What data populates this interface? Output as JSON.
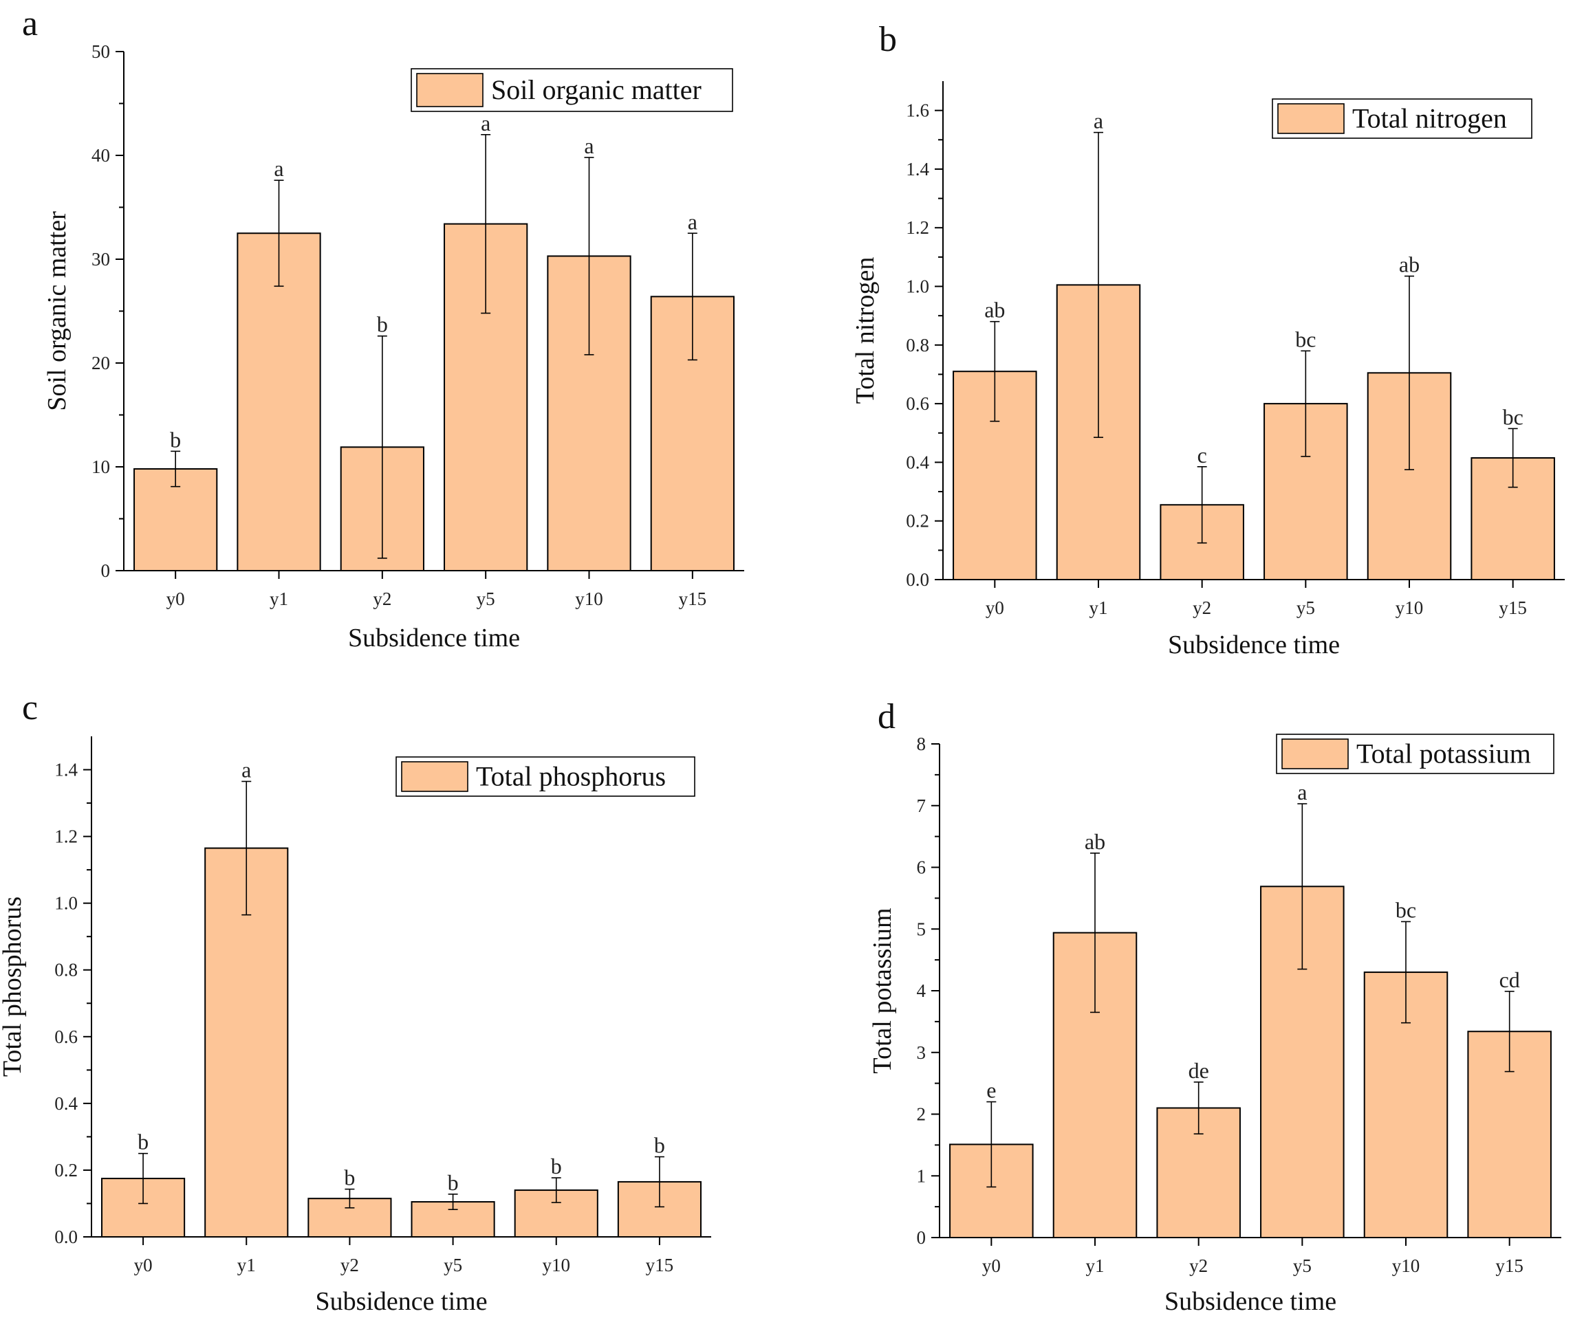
{
  "style": {
    "bar_fill": "#FDC597",
    "bar_stroke": "#000000",
    "axis_color": "#000000"
  },
  "chart_data": [
    {
      "type": "bar",
      "panel_letter": "a",
      "title": "",
      "categories": [
        "y0",
        "y1",
        "y2",
        "y5",
        "y10",
        "y15"
      ],
      "values": [
        9.8,
        32.5,
        11.9,
        33.4,
        30.3,
        26.4
      ],
      "errors": [
        1.7,
        5.1,
        10.7,
        8.6,
        9.5,
        6.1
      ],
      "letters": [
        "b",
        "a",
        "b",
        "a",
        "a",
        "a"
      ],
      "legend": "Soil organic matter",
      "xlabel": "Subsidence time",
      "ylabel": "Soil organic matter",
      "ylim": [
        0,
        50
      ],
      "yticks": [
        0,
        10,
        20,
        30,
        40,
        50
      ],
      "ytick_labels": [
        "0",
        "10",
        "20",
        "30",
        "40",
        "50"
      ],
      "minor_ticks": 1
    },
    {
      "type": "bar",
      "panel_letter": "b",
      "title": "",
      "categories": [
        "y0",
        "y1",
        "y2",
        "y5",
        "y10",
        "y15"
      ],
      "values": [
        0.71,
        1.005,
        0.255,
        0.6,
        0.705,
        0.415
      ],
      "errors": [
        0.17,
        0.52,
        0.13,
        0.18,
        0.33,
        0.1
      ],
      "letters": [
        "ab",
        "a",
        "c",
        "bc",
        "ab",
        "bc"
      ],
      "legend": "Total nitrogen",
      "xlabel": "Subsidence time",
      "ylabel": "Total nitrogen",
      "ylim": [
        0,
        1.7
      ],
      "yticks": [
        0,
        0.2,
        0.4,
        0.6,
        0.8,
        1.0,
        1.2,
        1.4,
        1.6
      ],
      "ytick_labels": [
        "0.0",
        "0.2",
        "0.4",
        "0.6",
        "0.8",
        "1.0",
        "1.2",
        "1.4",
        "1.6"
      ],
      "minor_ticks": 1
    },
    {
      "type": "bar",
      "panel_letter": "c",
      "title": "",
      "categories": [
        "y0",
        "y1",
        "y2",
        "y5",
        "y10",
        "y15"
      ],
      "values": [
        0.175,
        1.165,
        0.115,
        0.105,
        0.14,
        0.165
      ],
      "errors": [
        0.075,
        0.2,
        0.028,
        0.023,
        0.037,
        0.075
      ],
      "letters": [
        "b",
        "a",
        "b",
        "b",
        "b",
        "b"
      ],
      "legend": "Total phosphorus",
      "xlabel": "Subsidence time",
      "ylabel": "Total phosphorus",
      "ylim": [
        0,
        1.5
      ],
      "yticks": [
        0,
        0.2,
        0.4,
        0.6,
        0.8,
        1.0,
        1.2,
        1.4
      ],
      "ytick_labels": [
        "0.0",
        "0.2",
        "0.4",
        "0.6",
        "0.8",
        "1.0",
        "1.2",
        "1.4"
      ],
      "minor_ticks": 1
    },
    {
      "type": "bar",
      "panel_letter": "d",
      "title": "",
      "categories": [
        "y0",
        "y1",
        "y2",
        "y5",
        "y10",
        "y15"
      ],
      "values": [
        1.51,
        4.94,
        2.1,
        5.69,
        4.3,
        3.34
      ],
      "errors": [
        0.69,
        1.29,
        0.42,
        1.34,
        0.82,
        0.65
      ],
      "letters": [
        "e",
        "ab",
        "de",
        "a",
        "bc",
        "cd"
      ],
      "legend": "Total potassium",
      "xlabel": "Subsidence time",
      "ylabel": "Total potassium",
      "ylim": [
        0,
        8
      ],
      "yticks": [
        0,
        1,
        2,
        3,
        4,
        5,
        6,
        7,
        8
      ],
      "ytick_labels": [
        "0",
        "1",
        "2",
        "3",
        "4",
        "5",
        "6",
        "7",
        "8"
      ],
      "minor_ticks": 1
    }
  ]
}
